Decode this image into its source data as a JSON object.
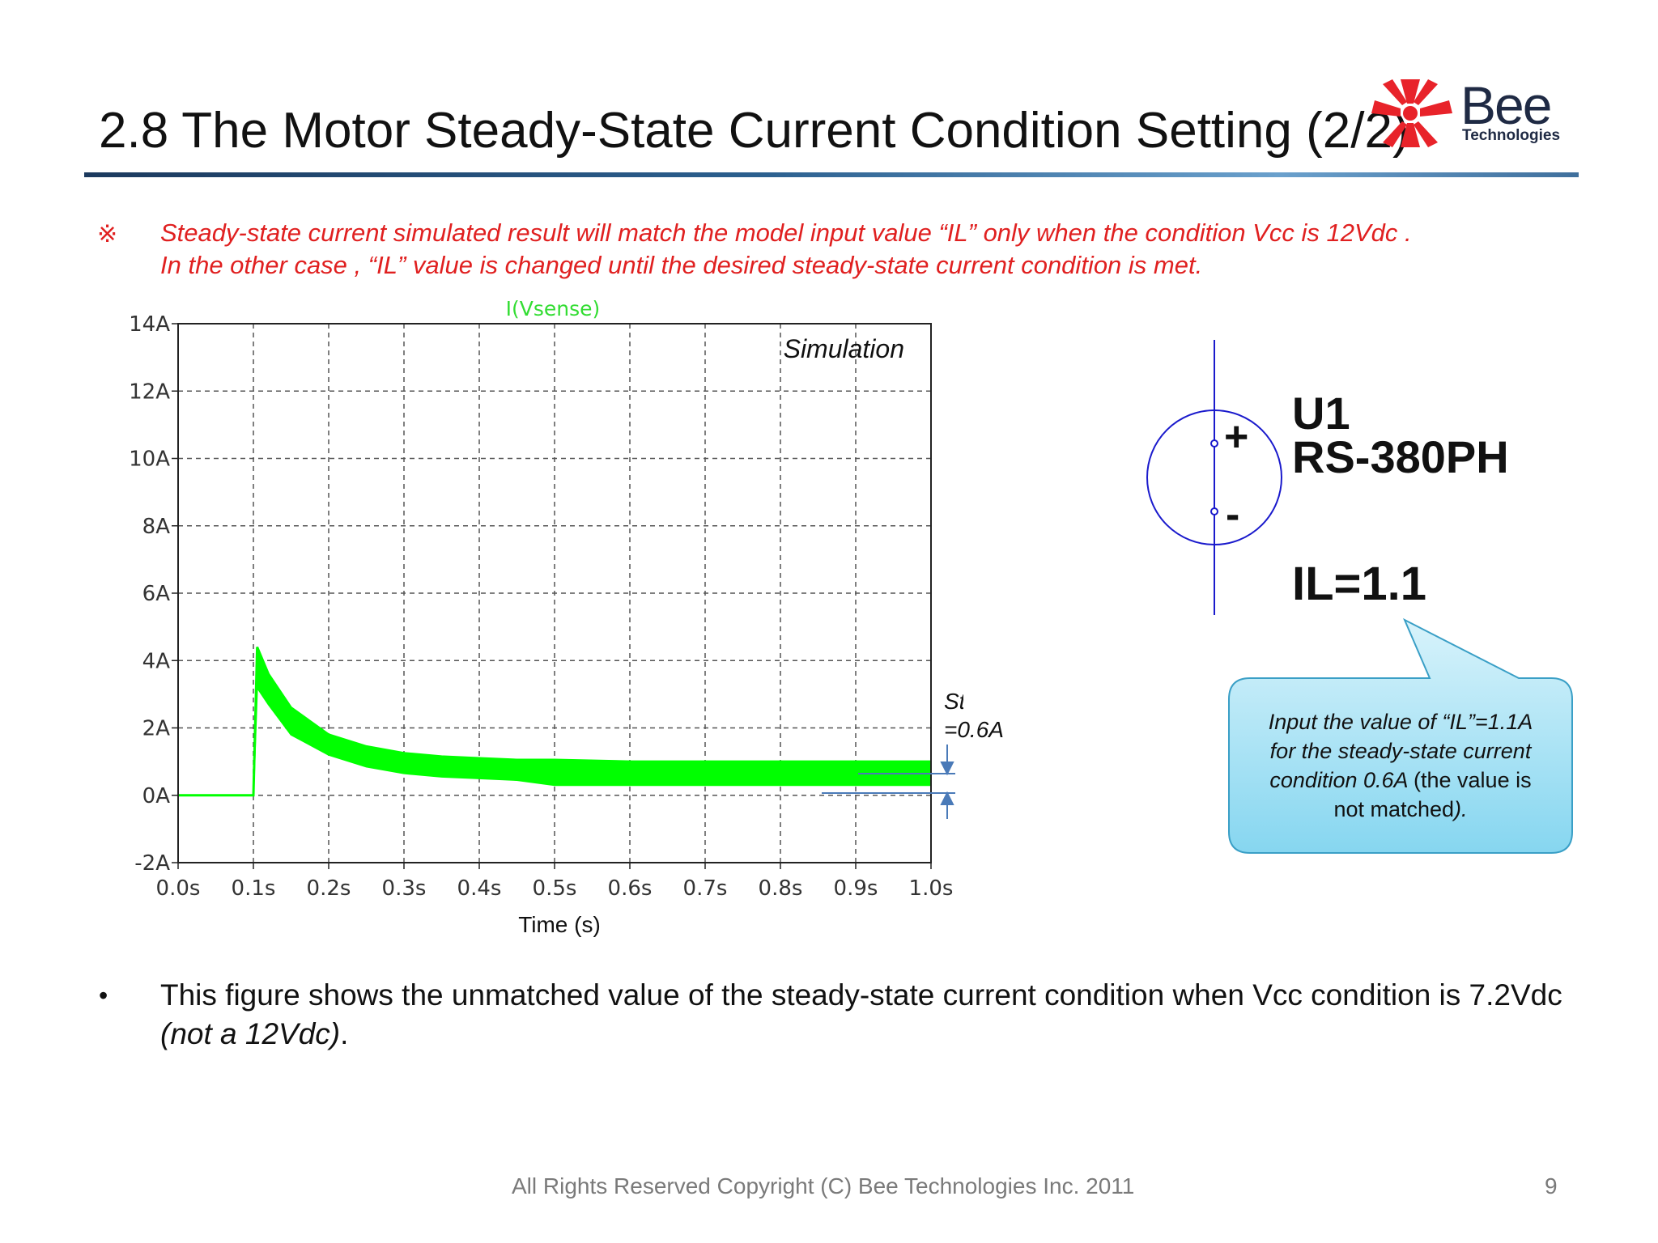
{
  "slide": {
    "title": "2.8 The Motor Steady-State Current Condition Setting (2/2)",
    "logo": {
      "name": "Bee",
      "sub": "Technologies",
      "icon": "bee-starburst-icon",
      "color": "#e8232a"
    },
    "note": {
      "mark": "※",
      "line1": "Steady-state current  simulated result will match the model input value “IL” only when the condition Vcc is 12Vdc .",
      "line2": "In the other case , “IL” value is changed until the desired steady-state current condition is met."
    },
    "symbol": {
      "ref": "U1",
      "part": "RS-380PH",
      "param": "IL=1.1",
      "plus": "+",
      "minus": "-"
    },
    "annotation": {
      "line1": "Steady-state current",
      "line2": "=0.6A"
    },
    "callout": {
      "line1": "Input the value of “IL”=1.1A",
      "line2": "for the steady-state current",
      "line3a": "condition 0.6A ",
      "line3b": "(the value is",
      "line4a": "not matched",
      "line4b": ")."
    },
    "bullet": {
      "dot": "•",
      "text_a": "This figure shows the unmatched value of the steady-state current condition when Vcc condition is 7.2Vdc ",
      "text_b": "(not a 12Vdc)",
      "text_c": "."
    },
    "footer": "All Rights Reserved Copyright (C) Bee Technologies Inc. 2011",
    "page_number": "9"
  },
  "chart_data": {
    "type": "line",
    "trace_label": "I(Vsense)",
    "inset_label": "Simulation",
    "xlabel": "Time (s)",
    "ylabel": "",
    "xlim": [
      0,
      1.0
    ],
    "ylim": [
      -2,
      14
    ],
    "x_ticks": [
      "0.0s",
      "0.1s",
      "0.2s",
      "0.3s",
      "0.4s",
      "0.5s",
      "0.6s",
      "0.7s",
      "0.8s",
      "0.9s",
      "1.0s"
    ],
    "y_ticks": [
      "14A",
      "12A",
      "10A",
      "8A",
      "6A",
      "4A",
      "2A",
      "0A",
      "-2A"
    ],
    "grid": true,
    "color": "#00ff00",
    "series": [
      {
        "name": "I(Vsense)",
        "upper": [
          [
            0,
            0
          ],
          [
            0.099,
            0
          ],
          [
            0.1,
            0
          ],
          [
            0.105,
            4.4
          ],
          [
            0.12,
            3.6
          ],
          [
            0.15,
            2.6
          ],
          [
            0.2,
            1.8
          ],
          [
            0.25,
            1.45
          ],
          [
            0.3,
            1.25
          ],
          [
            0.35,
            1.15
          ],
          [
            0.4,
            1.1
          ],
          [
            0.45,
            1.05
          ],
          [
            0.5,
            1.05
          ],
          [
            0.6,
            1.0
          ],
          [
            0.7,
            1.0
          ],
          [
            0.8,
            1.0
          ],
          [
            0.9,
            1.0
          ],
          [
            1.0,
            1.0
          ]
        ],
        "lower": [
          [
            0,
            0
          ],
          [
            0.099,
            0
          ],
          [
            0.1,
            0
          ],
          [
            0.105,
            3.2
          ],
          [
            0.12,
            2.7
          ],
          [
            0.15,
            1.8
          ],
          [
            0.2,
            1.2
          ],
          [
            0.25,
            0.85
          ],
          [
            0.3,
            0.65
          ],
          [
            0.35,
            0.55
          ],
          [
            0.4,
            0.5
          ],
          [
            0.45,
            0.45
          ],
          [
            0.5,
            0.3
          ],
          [
            0.6,
            0.3
          ],
          [
            0.7,
            0.3
          ],
          [
            0.8,
            0.3
          ],
          [
            0.9,
            0.3
          ],
          [
            1.0,
            0.3
          ]
        ]
      }
    ],
    "steady_state_marker": 0.6
  }
}
